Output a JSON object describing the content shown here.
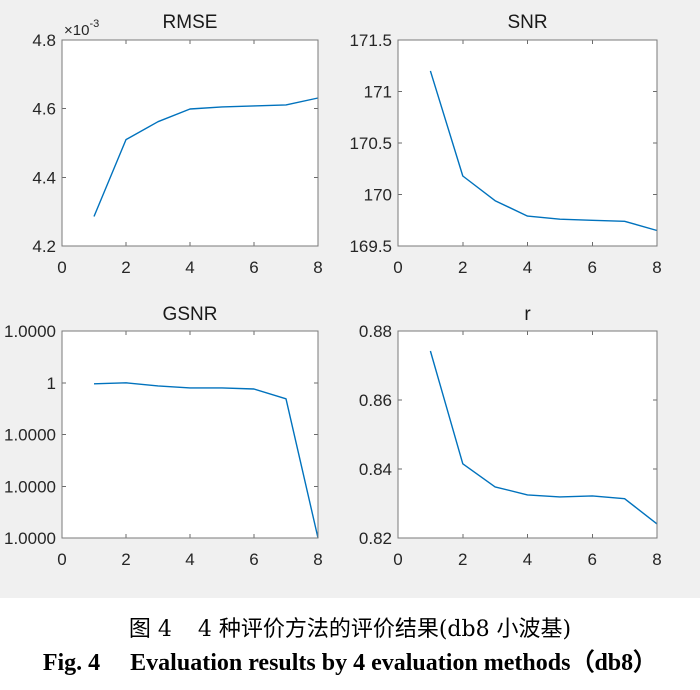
{
  "figure": {
    "background": "#f0f0f0",
    "axes_background": "#ffffff",
    "line_color": "#0072BD"
  },
  "chart_data": [
    {
      "type": "line",
      "title": "RMSE",
      "x": [
        1,
        2,
        3,
        4,
        5,
        6,
        7,
        8
      ],
      "series": [
        {
          "values": [
            4.286,
            4.51,
            4.562,
            4.599,
            4.605,
            4.608,
            4.611,
            4.631
          ]
        }
      ],
      "xlim": [
        0,
        8
      ],
      "ylim": [
        4.2,
        4.8
      ],
      "xticks": [
        0,
        2,
        4,
        6,
        8
      ],
      "xticklabels": [
        "0",
        "2",
        "4",
        "6",
        "8"
      ],
      "yticks": [
        4.2,
        4.4,
        4.6,
        4.8
      ],
      "yticklabels": [
        "4.2",
        "4.4",
        "4.6",
        "4.8"
      ],
      "y_exponent": {
        "base": "×10",
        "power": "-3"
      },
      "grid": false
    },
    {
      "type": "line",
      "title": "SNR",
      "x": [
        1,
        2,
        3,
        4,
        5,
        6,
        7,
        8
      ],
      "series": [
        {
          "values": [
            171.2,
            170.18,
            169.94,
            169.79,
            169.76,
            169.75,
            169.74,
            169.65
          ]
        }
      ],
      "xlim": [
        0,
        8
      ],
      "ylim": [
        169.5,
        171.5
      ],
      "xticks": [
        0,
        2,
        4,
        6,
        8
      ],
      "xticklabels": [
        "0",
        "2",
        "4",
        "6",
        "8"
      ],
      "yticks": [
        169.5,
        170,
        170.5,
        171,
        171.5
      ],
      "yticklabels": [
        "169.5",
        "170",
        "170.5",
        "171",
        "171.5"
      ],
      "grid": false
    },
    {
      "type": "line",
      "title": "GSNR",
      "x": [
        1,
        2,
        3,
        4,
        5,
        6,
        7,
        8
      ],
      "series": [
        {
          "values": [
            0.9999998,
            1,
            0.9999994,
            0.999999,
            0.999999,
            0.9999988,
            0.9999969,
            0.99997
          ]
        }
      ],
      "xlim": [
        0,
        8
      ],
      "ylim": [
        0.99997,
        1.00001
      ],
      "xticks": [
        0,
        2,
        4,
        6,
        8
      ],
      "xticklabels": [
        "0",
        "2",
        "4",
        "6",
        "8"
      ],
      "yticks": [
        0.99997,
        0.99998,
        0.99999,
        1,
        1.00001
      ],
      "yticklabels": [
        "1.0000",
        "1.0000",
        "1.0000",
        "1",
        "1.0000"
      ],
      "grid": false
    },
    {
      "type": "line",
      "title": "r",
      "x": [
        1,
        2,
        3,
        4,
        5,
        6,
        7,
        8
      ],
      "series": [
        {
          "values": [
            0.8742,
            0.8415,
            0.8348,
            0.8325,
            0.8319,
            0.8322,
            0.8314,
            0.8241
          ]
        }
      ],
      "xlim": [
        0,
        8
      ],
      "ylim": [
        0.82,
        0.88
      ],
      "xticks": [
        0,
        2,
        4,
        6,
        8
      ],
      "xticklabels": [
        "0",
        "2",
        "4",
        "6",
        "8"
      ],
      "yticks": [
        0.82,
        0.84,
        0.86,
        0.88
      ],
      "yticklabels": [
        "0.82",
        "0.84",
        "0.86",
        "0.88"
      ],
      "grid": false
    }
  ],
  "caption": {
    "cn_label": "图 4",
    "cn_text": "4 种评价方法的评价结果(db8 小波基)",
    "en_label": "Fig. 4",
    "en_text": "Evaluation results by 4 evaluation methods（db8）"
  }
}
